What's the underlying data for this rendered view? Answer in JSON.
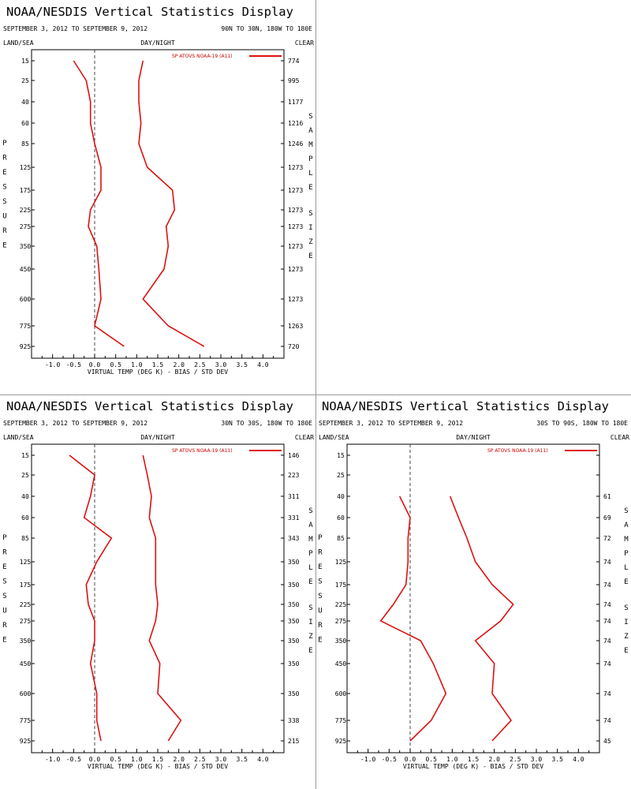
{
  "colors": {
    "series": "#dd1111",
    "axis": "#000000",
    "zero_line": "#444444"
  },
  "chart_data": [
    {
      "type": "line",
      "title": "NOAA/NESDIS Vertical Statistics Display",
      "date_range": "SEPTEMBER 3, 2012 TO SEPTEMBER 9, 2012",
      "region": "90N TO 30N, 180W TO 180E",
      "left_label": "LAND/SEA",
      "center_label": "DAY/NIGHT",
      "right_label": "CLEAR",
      "ylabel": "PRESSURE",
      "y2label": "SAMPLE SIZE",
      "xlabel": "VIRTUAL TEMP (DEG K) - BIAS / STD DEV",
      "legend": "SP ATOVS NOAA-19 (A11)",
      "xlim": [
        -1.5,
        4.5
      ],
      "x_ticks": [
        "-1.0",
        "-0.5",
        "0.0",
        "0.5",
        "1.0",
        "1.5",
        "2.0",
        "2.5",
        "3.0",
        "3.5",
        "4.0"
      ],
      "pressure_levels": [
        15,
        25,
        40,
        60,
        85,
        125,
        175,
        225,
        275,
        350,
        450,
        600,
        775,
        925
      ],
      "sample_sizes": [
        "774",
        "995",
        "1177",
        "1216",
        "1246",
        "1273",
        "1273",
        "1273",
        "1273",
        "1273",
        "1273",
        "1273",
        "1263",
        "720"
      ],
      "series": [
        {
          "name": "bias",
          "values": [
            -0.5,
            -0.2,
            -0.1,
            -0.1,
            0.0,
            0.15,
            0.15,
            -0.1,
            -0.15,
            0.05,
            0.1,
            0.15,
            0.0,
            0.7
          ]
        },
        {
          "name": "std_dev",
          "values": [
            1.15,
            1.05,
            1.05,
            1.1,
            1.05,
            1.25,
            1.85,
            1.9,
            1.7,
            1.75,
            1.65,
            1.15,
            1.75,
            2.6
          ]
        }
      ]
    },
    {
      "type": "line",
      "title": "NOAA/NESDIS Vertical Statistics Display",
      "date_range": "SEPTEMBER 3, 2012 TO SEPTEMBER 9, 2012",
      "region": "30N TO 30S, 180W TO 180E",
      "left_label": "LAND/SEA",
      "center_label": "DAY/NIGHT",
      "right_label": "CLEAR",
      "ylabel": "PRESSURE",
      "y2label": "SAMPLE SIZE",
      "xlabel": "VIRTUAL TEMP (DEG K) - BIAS / STD DEV",
      "legend": "SP ATOVS NOAA-19 (A11)",
      "xlim": [
        -1.5,
        4.5
      ],
      "x_ticks": [
        "-1.0",
        "-0.5",
        "0.0",
        "0.5",
        "1.0",
        "1.5",
        "2.0",
        "2.5",
        "3.0",
        "3.5",
        "4.0"
      ],
      "pressure_levels": [
        15,
        25,
        40,
        60,
        85,
        125,
        175,
        225,
        275,
        350,
        450,
        600,
        775,
        925
      ],
      "sample_sizes": [
        "146",
        "223",
        "311",
        "331",
        "343",
        "350",
        "350",
        "350",
        "350",
        "350",
        "350",
        "350",
        "338",
        "215"
      ],
      "series": [
        {
          "name": "bias",
          "values": [
            -0.6,
            0.0,
            -0.1,
            -0.25,
            0.4,
            0.05,
            -0.2,
            -0.15,
            0.0,
            0.0,
            -0.1,
            0.05,
            0.05,
            0.15
          ]
        },
        {
          "name": "std_dev",
          "values": [
            1.15,
            1.25,
            1.35,
            1.3,
            1.45,
            1.45,
            1.45,
            1.5,
            1.45,
            1.3,
            1.55,
            1.5,
            2.05,
            1.75
          ]
        }
      ]
    },
    {
      "type": "line",
      "title": "NOAA/NESDIS Vertical Statistics Display",
      "date_range": "SEPTEMBER 3, 2012 TO SEPTEMBER 9, 2012",
      "region": "30S TO 90S, 180W TO 180E",
      "left_label": "LAND/SEA",
      "center_label": "DAY/NIGHT",
      "right_label": "CLEAR",
      "ylabel": "PRESSURE",
      "y2label": "SAMPLE SIZE",
      "xlabel": "VIRTUAL TEMP (DEG K) - BIAS / STD DEV",
      "legend": "SP ATOVS NOAA-19 (A11)",
      "xlim": [
        -1.5,
        4.5
      ],
      "x_ticks": [
        "-1.0",
        "-0.5",
        "0.0",
        "0.5",
        "1.0",
        "1.5",
        "2.0",
        "2.5",
        "3.0",
        "3.5",
        "4.0"
      ],
      "pressure_levels": [
        15,
        25,
        40,
        60,
        85,
        125,
        175,
        225,
        275,
        350,
        450,
        600,
        775,
        925
      ],
      "sample_sizes": [
        "",
        "",
        "61",
        "69",
        "72",
        "74",
        "74",
        "74",
        "74",
        "74",
        "74",
        "74",
        "74",
        "45"
      ],
      "series": [
        {
          "name": "bias",
          "values": [
            null,
            null,
            -0.25,
            0.0,
            -0.05,
            -0.05,
            -0.1,
            -0.4,
            -0.7,
            0.25,
            0.55,
            0.85,
            0.5,
            0.0
          ]
        },
        {
          "name": "std_dev",
          "values": [
            null,
            null,
            0.95,
            1.15,
            1.35,
            1.55,
            1.95,
            2.45,
            2.15,
            1.55,
            2.0,
            1.95,
            2.4,
            1.95
          ]
        }
      ]
    }
  ]
}
